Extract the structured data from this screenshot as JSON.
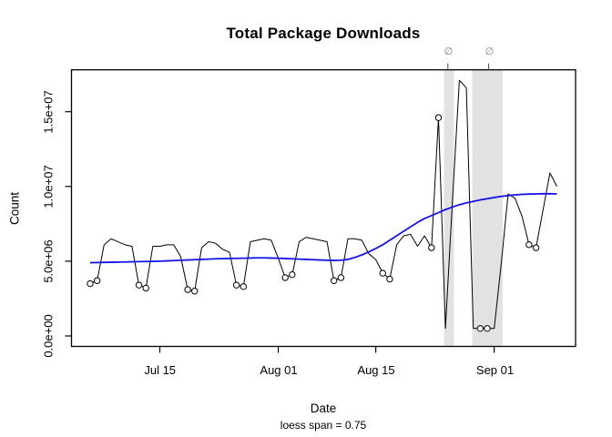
{
  "title": "Total Package Downloads",
  "axes": {
    "y_label": "Count",
    "x_label": "Date",
    "x_sub_label": "loess span = 0.75"
  },
  "colors": {
    "series_line": "#000000",
    "loess_line": "#1414e6",
    "band_fill": "#e2e2e2",
    "annotation_gray": "#7a7a7a",
    "tick_stroke": "#000000",
    "marker_fill": "#ffffff"
  },
  "chart_data": {
    "type": "line",
    "title": "Total Package Downloads",
    "xlabel": "Date",
    "ylabel": "Count",
    "subtitle": "loess span = 0.75",
    "grid": false,
    "legend": "none",
    "empty_set_symbol": "∅",
    "xlim_days": [
      -2.68,
      69.68
    ],
    "ylim_millions": [
      -0.7,
      17.8
    ],
    "x_ticks": [
      {
        "label": "Jul 15",
        "day": 10
      },
      {
        "label": "Aug 01",
        "day": 27
      },
      {
        "label": "Aug 15",
        "day": 41
      },
      {
        "label": "Sep 01",
        "day": 58
      }
    ],
    "y_ticks": [
      {
        "label": "0.0e+00",
        "value_millions": 0
      },
      {
        "label": "5.0e+06",
        "value_millions": 5
      },
      {
        "label": "1.0e+07",
        "value_millions": 10
      },
      {
        "label": "1.5e+07",
        "value_millions": 15
      }
    ],
    "dates": [
      "Jul 05",
      "Jul 06",
      "Jul 07",
      "Jul 08",
      "Jul 09",
      "Jul 10",
      "Jul 11",
      "Jul 12",
      "Jul 13",
      "Jul 14",
      "Jul 15",
      "Jul 16",
      "Jul 17",
      "Jul 18",
      "Jul 19",
      "Jul 20",
      "Jul 21",
      "Jul 22",
      "Jul 23",
      "Jul 24",
      "Jul 25",
      "Jul 26",
      "Jul 27",
      "Jul 28",
      "Jul 29",
      "Jul 30",
      "Jul 31",
      "Aug 01",
      "Aug 02",
      "Aug 03",
      "Aug 04",
      "Aug 05",
      "Aug 06",
      "Aug 07",
      "Aug 08",
      "Aug 09",
      "Aug 10",
      "Aug 11",
      "Aug 12",
      "Aug 13",
      "Aug 14",
      "Aug 15",
      "Aug 16",
      "Aug 17",
      "Aug 18",
      "Aug 19",
      "Aug 20",
      "Aug 21",
      "Aug 22",
      "Aug 23",
      "Aug 24",
      "Aug 25",
      "Aug 26",
      "Aug 27",
      "Aug 28",
      "Aug 29",
      "Aug 30",
      "Aug 31",
      "Sep 01",
      "Sep 02",
      "Sep 03",
      "Sep 04",
      "Sep 05",
      "Sep 06",
      "Sep 07",
      "Sep 08",
      "Sep 09",
      "Sep 10"
    ],
    "series": [
      {
        "name": "daily package downloads",
        "values_millions": [
          3.5,
          3.7,
          6.1,
          6.5,
          6.3,
          6.1,
          6.0,
          3.4,
          3.2,
          6.0,
          6.0,
          6.1,
          6.1,
          5.3,
          3.1,
          3.0,
          5.9,
          6.3,
          6.2,
          5.8,
          5.6,
          3.4,
          3.3,
          6.3,
          6.4,
          6.5,
          6.4,
          5.2,
          3.9,
          4.1,
          6.3,
          6.6,
          6.5,
          6.4,
          6.3,
          3.7,
          3.9,
          6.5,
          6.5,
          6.4,
          5.5,
          5.1,
          4.2,
          3.8,
          6.1,
          6.7,
          6.8,
          6.0,
          6.7,
          5.9,
          14.6,
          0.5,
          9.0,
          17.1,
          16.6,
          0.5,
          0.5,
          0.5,
          0.5,
          4.8,
          9.5,
          9.2,
          8.0,
          6.1,
          5.9,
          8.4,
          10.9,
          10.0
        ]
      },
      {
        "name": "loess smooth (span 0.75)",
        "values_millions": [
          4.9,
          4.91,
          4.92,
          4.93,
          4.94,
          4.95,
          4.96,
          4.97,
          4.98,
          4.99,
          5.0,
          5.02,
          5.04,
          5.06,
          5.08,
          5.1,
          5.12,
          5.14,
          5.16,
          5.17,
          5.18,
          5.19,
          5.2,
          5.21,
          5.22,
          5.22,
          5.21,
          5.2,
          5.18,
          5.16,
          5.14,
          5.12,
          5.1,
          5.08,
          5.06,
          5.05,
          5.06,
          5.12,
          5.25,
          5.42,
          5.62,
          5.85,
          6.1,
          6.4,
          6.7,
          7.0,
          7.3,
          7.6,
          7.85,
          8.05,
          8.25,
          8.45,
          8.62,
          8.78,
          8.9,
          9.0,
          9.1,
          9.18,
          9.26,
          9.33,
          9.39,
          9.44,
          9.47,
          9.49,
          9.5,
          9.51,
          9.51,
          9.5
        ]
      }
    ],
    "circled_point_indices": [
      0,
      1,
      7,
      8,
      14,
      15,
      21,
      22,
      28,
      29,
      35,
      36,
      42,
      43,
      49,
      50,
      56,
      57,
      63,
      64
    ],
    "highlight_bands_day_range": [
      [
        50.8,
        52.2
      ],
      [
        54.85,
        59.2
      ]
    ],
    "empty_set_marker_days": [
      51.35,
      57.2
    ]
  }
}
